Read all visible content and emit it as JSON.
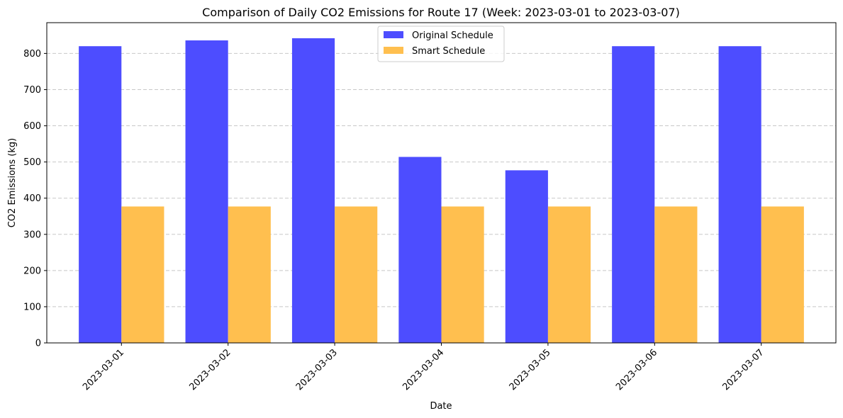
{
  "chart_data": {
    "type": "bar",
    "title": "Comparison of Daily CO2 Emissions for Route 17 (Week: 2023-03-01 to 2023-03-07)",
    "xlabel": "Date",
    "ylabel": "CO2 Emissions (kg)",
    "categories": [
      "2023-03-01",
      "2023-03-02",
      "2023-03-03",
      "2023-03-04",
      "2023-03-05",
      "2023-03-06",
      "2023-03-07"
    ],
    "series": [
      {
        "name": "Original Schedule",
        "color": "#4d4dff",
        "values": [
          820,
          836,
          842,
          514,
          477,
          820,
          820
        ]
      },
      {
        "name": "Smart Schedule",
        "color": "#ffbf4f",
        "values": [
          377,
          377,
          377,
          377,
          377,
          377,
          377
        ]
      }
    ],
    "ylim": [
      0,
      885
    ],
    "yticks": [
      0,
      100,
      200,
      300,
      400,
      500,
      600,
      700,
      800
    ],
    "grid": "y-dashed",
    "legend_position": "upper center"
  }
}
